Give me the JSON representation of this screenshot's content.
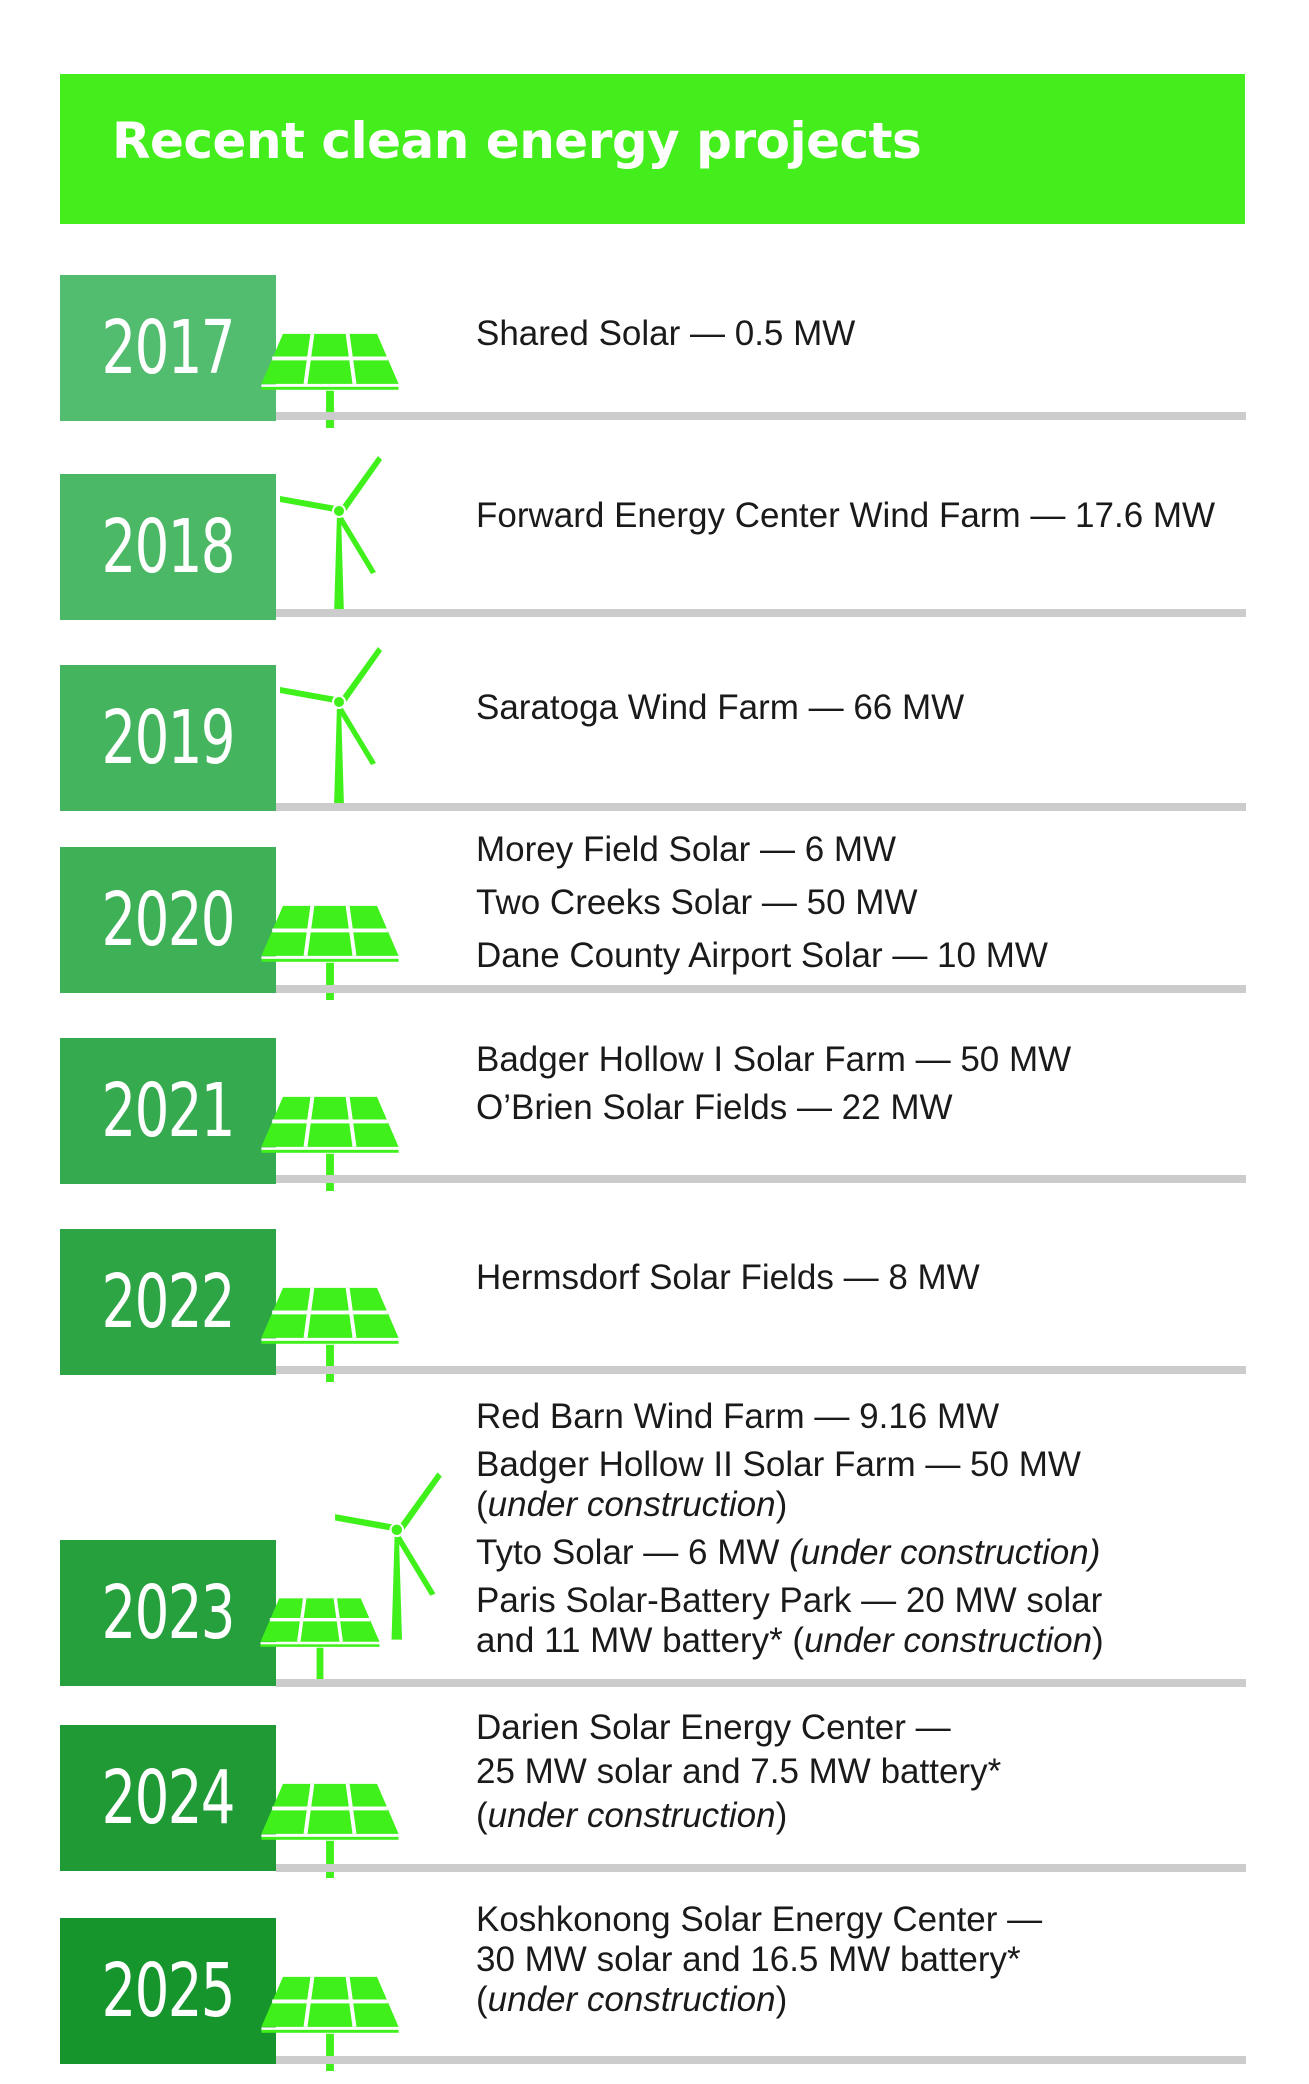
{
  "title": "Recent clean energy projects",
  "colors": {
    "header": "#44ee1c",
    "icon": "#3ff01a",
    "divider": "#cccccc",
    "year_boxes": [
      "#52bd6e",
      "#4bb865",
      "#45b45f",
      "#3eb056",
      "#36aa4e",
      "#2ea545",
      "#26a03c",
      "#1f9a35",
      "#17952d"
    ]
  },
  "rows": [
    {
      "year": "2017",
      "icon": "solar-panel-icon",
      "projects": [
        {
          "text": "Shared Solar — 0.5 MW"
        }
      ]
    },
    {
      "year": "2018",
      "icon": "wind-turbine-icon",
      "projects": [
        {
          "text": "Forward Energy Center Wind Farm — 17.6 MW"
        }
      ]
    },
    {
      "year": "2019",
      "icon": "wind-turbine-icon",
      "projects": [
        {
          "text": "Saratoga Wind Farm — 66 MW"
        }
      ]
    },
    {
      "year": "2020",
      "icon": "solar-panel-icon",
      "projects": [
        {
          "text": "Morey Field Solar — 6 MW"
        },
        {
          "text": "Two Creeks Solar — 50 MW"
        },
        {
          "text": "Dane County Airport Solar — 10 MW"
        }
      ]
    },
    {
      "year": "2021",
      "icon": "solar-panel-icon",
      "projects": [
        {
          "text": "Badger Hollow I Solar Farm — 50 MW"
        },
        {
          "text": "O’Brien Solar Fields — 22 MW"
        }
      ]
    },
    {
      "year": "2022",
      "icon": "solar-panel-icon",
      "projects": [
        {
          "text": "Hermsdorf Solar Fields — 8 MW"
        }
      ]
    },
    {
      "year": "2023",
      "icon": "solar-panel-and-wind-turbine-icon",
      "projects": [
        {
          "text": "Red Barn Wind Farm — 9.16 MW"
        },
        {
          "text": "Badger Hollow II Solar Farm — 50 MW"
        },
        {
          "pre": "(",
          "italic": "under construction",
          "post": ")"
        },
        {
          "pre": "Tyto Solar — 6 MW ",
          "italic": "(under construction)",
          "post": ""
        },
        {
          "text": "Paris Solar-Battery Park — 20 MW solar"
        },
        {
          "pre": "and 11 MW battery* (",
          "italic": "under construction",
          "post": ")"
        }
      ]
    },
    {
      "year": "2024",
      "icon": "solar-panel-icon",
      "projects": [
        {
          "text": "Darien Solar Energy Center —"
        },
        {
          "text": "25 MW solar and 7.5 MW battery*"
        },
        {
          "pre": "(",
          "italic": "under construction",
          "post": ")"
        }
      ]
    },
    {
      "year": "2025",
      "icon": "solar-panel-icon",
      "projects": [
        {
          "text": "Koshkonong Solar Energy Center —"
        },
        {
          "text": "30 MW solar and 16.5 MW battery*"
        },
        {
          "pre": "(",
          "italic": "under construction",
          "post": ")"
        }
      ]
    }
  ]
}
